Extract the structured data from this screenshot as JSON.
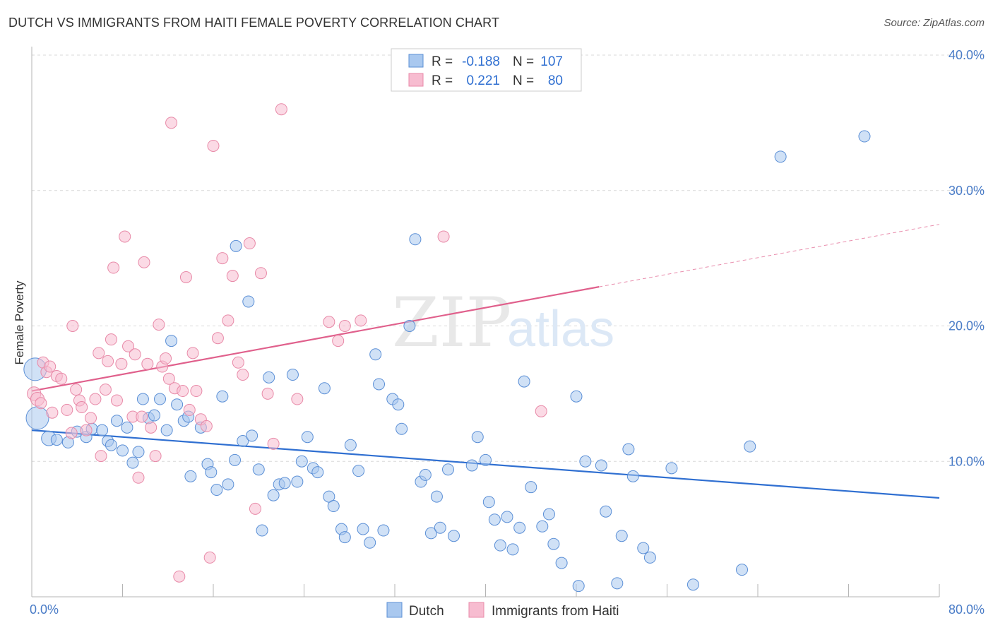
{
  "title": "DUTCH VS IMMIGRANTS FROM HAITI FEMALE POVERTY CORRELATION CHART",
  "source": "Source: ZipAtlas.com",
  "watermark": "ZIPatlas",
  "colors": {
    "dutch_fill": "#a9c8ef",
    "dutch_stroke": "#5b8fd6",
    "dutch_line": "#2f6fd1",
    "haiti_fill": "#f7bcd0",
    "haiti_stroke": "#e88aa8",
    "haiti_line": "#e0608c",
    "grid": "#d8d8d8",
    "axis_text": "#4a7cc7"
  },
  "legend": {
    "rows": [
      {
        "r_label": "R =",
        "r_value": "-0.188",
        "n_label": "N =",
        "n_value": "107"
      },
      {
        "r_label": "R =",
        "r_value": "0.221",
        "n_label": "N =",
        "n_value": "80"
      }
    ]
  },
  "chart_data": {
    "type": "scatter",
    "xlabel": "",
    "ylabel": "Female Poverty",
    "xlim": [
      0,
      80
    ],
    "ylim": [
      0,
      40
    ],
    "x_tick_labels": [
      "0.0%",
      "80.0%"
    ],
    "y_tick_labels": [
      "10.0%",
      "20.0%",
      "30.0%",
      "40.0%"
    ],
    "y_ticks": [
      10,
      20,
      30,
      40
    ],
    "grid": true,
    "legend_position": "bottom-center",
    "series": [
      {
        "name": "Dutch",
        "r": -0.188,
        "n": 107,
        "trend": {
          "x0": 0,
          "y0": 12.3,
          "x1": 80,
          "y1": 7.3,
          "dashed_from": null
        },
        "points": [
          [
            0.3,
            16.8,
            2.0
          ],
          [
            0.5,
            13.2,
            2.0
          ],
          [
            1.5,
            11.7,
            1.3
          ],
          [
            2.2,
            11.6,
            1.0
          ],
          [
            3.2,
            11.4,
            1.0
          ],
          [
            4.0,
            12.2,
            1.0
          ],
          [
            4.8,
            11.8,
            1.0
          ],
          [
            5.3,
            12.4,
            1.0
          ],
          [
            6.2,
            12.3,
            1.0
          ],
          [
            6.7,
            11.5,
            1.0
          ],
          [
            7.0,
            11.2,
            1.0
          ],
          [
            7.5,
            13.0,
            1.0
          ],
          [
            8.0,
            10.8,
            1.0
          ],
          [
            8.4,
            12.5,
            1.0
          ],
          [
            8.9,
            9.9,
            1.0
          ],
          [
            9.4,
            10.7,
            1.0
          ],
          [
            9.8,
            14.6,
            1.0
          ],
          [
            10.3,
            13.2,
            1.0
          ],
          [
            10.8,
            13.4,
            1.0
          ],
          [
            11.3,
            14.6,
            1.0
          ],
          [
            11.9,
            12.3,
            1.0
          ],
          [
            12.3,
            18.9,
            1.0
          ],
          [
            12.8,
            14.2,
            1.0
          ],
          [
            13.4,
            13.0,
            1.0
          ],
          [
            13.8,
            13.3,
            1.0
          ],
          [
            14.0,
            8.9,
            1.0
          ],
          [
            14.9,
            12.5,
            1.0
          ],
          [
            15.5,
            9.8,
            1.0
          ],
          [
            15.8,
            9.2,
            1.0
          ],
          [
            16.3,
            7.9,
            1.0
          ],
          [
            16.8,
            14.8,
            1.0
          ],
          [
            17.3,
            8.3,
            1.0
          ],
          [
            17.9,
            10.1,
            1.0
          ],
          [
            18.0,
            25.9,
            1.0
          ],
          [
            18.6,
            11.5,
            1.0
          ],
          [
            19.1,
            21.8,
            1.0
          ],
          [
            19.4,
            11.9,
            1.0
          ],
          [
            20.0,
            9.4,
            1.0
          ],
          [
            20.3,
            4.9,
            1.0
          ],
          [
            20.9,
            16.2,
            1.0
          ],
          [
            21.3,
            7.5,
            1.0
          ],
          [
            21.8,
            8.3,
            1.0
          ],
          [
            22.3,
            8.4,
            1.0
          ],
          [
            23.0,
            16.4,
            1.0
          ],
          [
            23.4,
            8.5,
            1.0
          ],
          [
            23.8,
            10.0,
            1.0
          ],
          [
            24.3,
            11.8,
            1.0
          ],
          [
            24.8,
            9.5,
            1.0
          ],
          [
            25.2,
            9.2,
            1.0
          ],
          [
            25.8,
            15.4,
            1.0
          ],
          [
            26.2,
            7.4,
            1.0
          ],
          [
            26.6,
            6.7,
            1.0
          ],
          [
            27.3,
            5.0,
            1.0
          ],
          [
            27.6,
            4.4,
            1.0
          ],
          [
            28.1,
            11.2,
            1.0
          ],
          [
            28.8,
            9.3,
            1.0
          ],
          [
            29.2,
            5.0,
            1.0
          ],
          [
            29.8,
            4.0,
            1.0
          ],
          [
            30.3,
            17.9,
            1.0
          ],
          [
            30.6,
            15.7,
            1.0
          ],
          [
            31.0,
            4.9,
            1.0
          ],
          [
            31.8,
            14.6,
            1.0
          ],
          [
            32.3,
            14.2,
            1.0
          ],
          [
            32.6,
            12.4,
            1.0
          ],
          [
            33.3,
            20.0,
            1.0
          ],
          [
            33.8,
            26.4,
            1.0
          ],
          [
            34.3,
            8.5,
            1.0
          ],
          [
            34.7,
            9.0,
            1.0
          ],
          [
            35.2,
            4.7,
            1.0
          ],
          [
            35.7,
            7.4,
            1.0
          ],
          [
            36.0,
            5.1,
            1.0
          ],
          [
            36.7,
            9.4,
            1.0
          ],
          [
            37.2,
            4.5,
            1.0
          ],
          [
            38.8,
            9.7,
            1.0
          ],
          [
            39.3,
            11.8,
            1.0
          ],
          [
            40.0,
            10.1,
            1.0
          ],
          [
            40.3,
            7.0,
            1.0
          ],
          [
            40.8,
            5.7,
            1.0
          ],
          [
            41.3,
            3.8,
            1.0
          ],
          [
            41.9,
            5.9,
            1.0
          ],
          [
            42.4,
            3.5,
            1.0
          ],
          [
            43.0,
            5.1,
            1.0
          ],
          [
            43.4,
            15.9,
            1.0
          ],
          [
            44.0,
            8.1,
            1.0
          ],
          [
            45.0,
            5.2,
            1.0
          ],
          [
            45.6,
            6.1,
            1.0
          ],
          [
            46.0,
            3.9,
            1.0
          ],
          [
            46.7,
            2.5,
            1.0
          ],
          [
            48.0,
            14.8,
            1.0
          ],
          [
            48.2,
            0.8,
            1.0
          ],
          [
            48.8,
            10.0,
            1.0
          ],
          [
            50.2,
            9.7,
            1.0
          ],
          [
            50.6,
            6.3,
            1.0
          ],
          [
            51.6,
            1.0,
            1.0
          ],
          [
            52.0,
            4.5,
            1.0
          ],
          [
            52.6,
            10.9,
            1.0
          ],
          [
            53.0,
            8.9,
            1.0
          ],
          [
            53.9,
            3.6,
            1.0
          ],
          [
            54.5,
            2.9,
            1.0
          ],
          [
            56.4,
            9.5,
            1.0
          ],
          [
            58.3,
            0.9,
            1.0
          ],
          [
            62.6,
            2.0,
            1.0
          ],
          [
            63.3,
            11.1,
            1.0
          ],
          [
            66.0,
            32.5,
            1.0
          ],
          [
            73.4,
            34.0,
            1.0
          ]
        ]
      },
      {
        "name": "Immigrants from Haiti",
        "r": 0.221,
        "n": 80,
        "trend": {
          "x0": 0,
          "y0": 15.2,
          "x1": 80,
          "y1": 27.5,
          "dashed_from": 50
        },
        "points": [
          [
            0.2,
            15.0,
            1.2
          ],
          [
            0.5,
            14.6,
            1.2
          ],
          [
            0.8,
            14.3,
            1.0
          ],
          [
            1.0,
            17.3,
            1.0
          ],
          [
            1.3,
            16.6,
            1.0
          ],
          [
            1.6,
            17.0,
            1.0
          ],
          [
            1.8,
            13.6,
            1.0
          ],
          [
            2.2,
            16.3,
            1.0
          ],
          [
            2.6,
            16.1,
            1.0
          ],
          [
            3.1,
            13.8,
            1.0
          ],
          [
            3.5,
            12.1,
            1.0
          ],
          [
            3.6,
            20.0,
            1.0
          ],
          [
            3.9,
            15.3,
            1.0
          ],
          [
            4.2,
            14.5,
            1.0
          ],
          [
            4.4,
            14.0,
            1.0
          ],
          [
            4.8,
            12.3,
            1.0
          ],
          [
            5.2,
            13.2,
            1.0
          ],
          [
            5.6,
            14.6,
            1.0
          ],
          [
            5.9,
            18.0,
            1.0
          ],
          [
            6.1,
            10.4,
            1.0
          ],
          [
            6.5,
            15.3,
            1.0
          ],
          [
            6.7,
            17.4,
            1.0
          ],
          [
            7.0,
            19.0,
            1.0
          ],
          [
            7.2,
            24.3,
            1.0
          ],
          [
            7.5,
            14.5,
            1.0
          ],
          [
            7.9,
            17.2,
            1.0
          ],
          [
            8.2,
            26.6,
            1.0
          ],
          [
            8.5,
            18.5,
            1.0
          ],
          [
            8.9,
            13.3,
            1.0
          ],
          [
            9.1,
            17.9,
            1.0
          ],
          [
            9.4,
            8.8,
            1.0
          ],
          [
            9.7,
            13.3,
            1.0
          ],
          [
            9.9,
            24.7,
            1.0
          ],
          [
            10.2,
            17.2,
            1.0
          ],
          [
            10.5,
            12.5,
            1.0
          ],
          [
            10.9,
            10.4,
            1.0
          ],
          [
            11.2,
            20.1,
            1.0
          ],
          [
            11.5,
            17.0,
            1.0
          ],
          [
            11.8,
            17.6,
            1.0
          ],
          [
            12.1,
            16.1,
            1.0
          ],
          [
            12.3,
            35.0,
            1.0
          ],
          [
            12.6,
            15.4,
            1.0
          ],
          [
            13.0,
            1.5,
            1.0
          ],
          [
            13.3,
            15.2,
            1.0
          ],
          [
            13.6,
            23.6,
            1.0
          ],
          [
            13.9,
            13.8,
            1.0
          ],
          [
            14.2,
            18.0,
            1.0
          ],
          [
            14.5,
            15.2,
            1.0
          ],
          [
            14.9,
            13.1,
            1.0
          ],
          [
            15.4,
            12.6,
            1.0
          ],
          [
            15.7,
            2.9,
            1.0
          ],
          [
            16.0,
            33.3,
            1.0
          ],
          [
            16.4,
            19.1,
            1.0
          ],
          [
            16.8,
            25.0,
            1.0
          ],
          [
            17.3,
            20.4,
            1.0
          ],
          [
            17.7,
            23.7,
            1.0
          ],
          [
            18.2,
            17.3,
            1.0
          ],
          [
            18.6,
            16.4,
            1.0
          ],
          [
            19.2,
            26.1,
            1.0
          ],
          [
            19.7,
            6.5,
            1.0
          ],
          [
            20.2,
            23.9,
            1.0
          ],
          [
            20.8,
            15.0,
            1.0
          ],
          [
            21.3,
            11.3,
            1.0
          ],
          [
            22.0,
            36.0,
            1.0
          ],
          [
            23.4,
            14.6,
            1.0
          ],
          [
            26.2,
            20.3,
            1.0
          ],
          [
            27.0,
            18.9,
            1.0
          ],
          [
            27.6,
            20.0,
            1.0
          ],
          [
            29.0,
            20.4,
            1.0
          ],
          [
            36.3,
            26.6,
            1.0
          ],
          [
            44.9,
            13.7,
            1.0
          ]
        ]
      }
    ]
  },
  "bottom_legend": [
    {
      "label": "Dutch"
    },
    {
      "label": "Immigrants from Haiti"
    }
  ]
}
